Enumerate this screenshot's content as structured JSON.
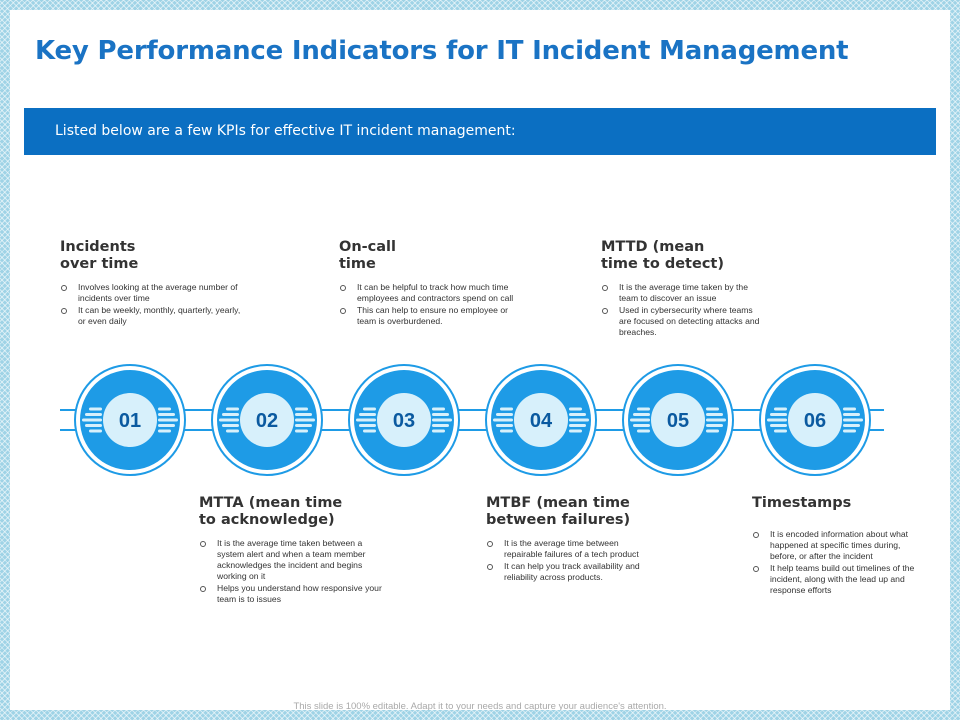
{
  "slide": {
    "title": "Key Performance Indicators for IT Incident Management",
    "banner_text": "Listed below are a few KPIs for effective IT incident management:",
    "footer": "This slide is 100% editable. Adapt it to your needs and capture your audience's attention."
  },
  "colors": {
    "accent": "#1a73c4",
    "banner": "#0b6fc2",
    "circle": "#1e9be6",
    "circle_light": "#d7f0fb"
  },
  "steps": [
    {
      "number": "01",
      "title": "Incidents\nover time",
      "bullets": [
        "Involves looking at the average number of incidents over time",
        "It can be weekly, monthly, quarterly, yearly, or even daily"
      ]
    },
    {
      "number": "02",
      "title": "MTTA (mean time\nto acknowledge)",
      "bullets": [
        "It is the average time taken between a system alert and when a team member acknowledges the incident and begins working on it",
        "Helps you understand how responsive your team is to issues"
      ]
    },
    {
      "number": "03",
      "title": "On-call\ntime",
      "bullets": [
        "It can be helpful to track how much time employees and contractors spend on call",
        "This can help to ensure no employee or team is overburdened."
      ]
    },
    {
      "number": "04",
      "title": "MTBF (mean time\nbetween failures)",
      "bullets": [
        "It is the average time between repairable failures of a tech product",
        "It can help you track availability and reliability across products."
      ]
    },
    {
      "number": "05",
      "title": "MTTD (mean\ntime to detect)",
      "bullets": [
        "It is the average time taken by the team to discover an issue",
        "Used in cybersecurity where teams are focused on detecting attacks and breaches."
      ]
    },
    {
      "number": "06",
      "title": "Timestamps",
      "bullets": [
        "It is encoded information about what happened at specific times during, before, or after the incident",
        "It help teams build out timelines of the incident, along with the lead up and response efforts"
      ]
    }
  ]
}
